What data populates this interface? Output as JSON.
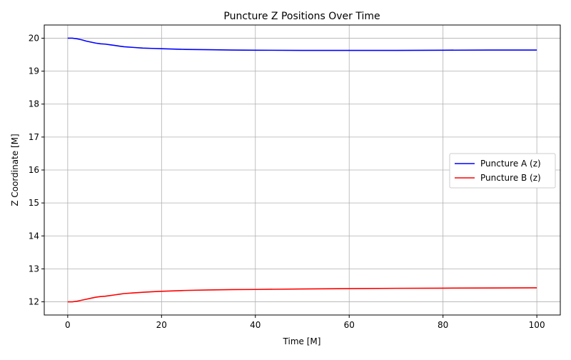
{
  "chart_data": {
    "type": "line",
    "title": "Puncture Z Positions Over Time",
    "xlabel": "Time [M]",
    "ylabel": "Z Coordinate [M]",
    "xlim": [
      -5,
      105
    ],
    "ylim": [
      11.6,
      20.4
    ],
    "xticks": [
      0,
      20,
      40,
      60,
      80,
      100
    ],
    "yticks": [
      12,
      13,
      14,
      15,
      16,
      17,
      18,
      19,
      20
    ],
    "grid": true,
    "legend_position": "center-right",
    "series": [
      {
        "name": "Puncture A (z)",
        "color": "#0000ff",
        "x": [
          0,
          1,
          2,
          3,
          4,
          5,
          6,
          7,
          8,
          9,
          10,
          11,
          12,
          14,
          16,
          18,
          20,
          25,
          30,
          35,
          40,
          50,
          60,
          70,
          80,
          90,
          100
        ],
        "y": [
          20.0,
          20.0,
          19.98,
          19.95,
          19.91,
          19.88,
          19.85,
          19.83,
          19.82,
          19.8,
          19.78,
          19.76,
          19.74,
          19.72,
          19.7,
          19.69,
          19.68,
          19.66,
          19.65,
          19.64,
          19.635,
          19.63,
          19.63,
          19.63,
          19.635,
          19.64,
          19.64
        ]
      },
      {
        "name": "Puncture B (z)",
        "color": "#ff0000",
        "x": [
          0,
          1,
          2,
          3,
          4,
          5,
          6,
          7,
          8,
          9,
          10,
          11,
          12,
          14,
          16,
          18,
          20,
          25,
          30,
          35,
          40,
          50,
          60,
          70,
          80,
          90,
          100
        ],
        "y": [
          12.0,
          12.0,
          12.02,
          12.05,
          12.08,
          12.11,
          12.14,
          12.16,
          12.17,
          12.19,
          12.21,
          12.23,
          12.25,
          12.27,
          12.29,
          12.305,
          12.32,
          12.345,
          12.36,
          12.37,
          12.375,
          12.39,
          12.4,
          12.41,
          12.415,
          12.42,
          12.425
        ]
      }
    ]
  }
}
